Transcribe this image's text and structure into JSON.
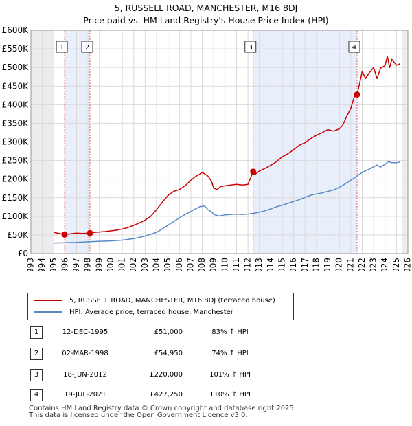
{
  "title": "5, RUSSELL ROAD, MANCHESTER, M16 8DJ",
  "subtitle": "Price paid vs. HM Land Registry's House Price Index (HPI)",
  "colors": {
    "property": "#cc0000",
    "hpi": "#5a8ac6",
    "band": "#e8eefa"
  },
  "chart_data": {
    "type": "line",
    "title": "Price paid vs. HM Land Registry's House Price Index (HPI)",
    "xlabel": "",
    "ylabel": "",
    "xlim": [
      1993,
      2026
    ],
    "ylim": [
      0,
      600000
    ],
    "x_ticks": [
      "1993",
      "1994",
      "1995",
      "1996",
      "1997",
      "1998",
      "1999",
      "2000",
      "2001",
      "2002",
      "2003",
      "2004",
      "2005",
      "2006",
      "2007",
      "2008",
      "2009",
      "2010",
      "2011",
      "2012",
      "2013",
      "2014",
      "2015",
      "2016",
      "2017",
      "2018",
      "2019",
      "2020",
      "2021",
      "2022",
      "2023",
      "2024",
      "2025",
      "2026"
    ],
    "y_ticks": [
      {
        "value": 0,
        "label": "£0"
      },
      {
        "value": 50000,
        "label": "£50K"
      },
      {
        "value": 100000,
        "label": "£100K"
      },
      {
        "value": 150000,
        "label": "£150K"
      },
      {
        "value": 200000,
        "label": "£200K"
      },
      {
        "value": 250000,
        "label": "£250K"
      },
      {
        "value": 300000,
        "label": "£300K"
      },
      {
        "value": 350000,
        "label": "£350K"
      },
      {
        "value": 400000,
        "label": "£400K"
      },
      {
        "value": 450000,
        "label": "£450K"
      },
      {
        "value": 500000,
        "label": "£500K"
      },
      {
        "value": 550000,
        "label": "£550K"
      },
      {
        "value": 600000,
        "label": "£600K"
      }
    ],
    "shaded_regions": [
      [
        1993,
        1995.0
      ],
      [
        2025.5,
        2026
      ]
    ],
    "series": [
      {
        "name": "5, RUSSELL ROAD, MANCHESTER, M16 8DJ (terraced house)",
        "x": [
          1995.0,
          1995.95,
          1996.5,
          1997.0,
          1997.5,
          1998.17,
          1998.6,
          1999.0,
          1999.5,
          2000.0,
          2000.5,
          2001.0,
          2001.5,
          2002.0,
          2002.5,
          2003.0,
          2003.5,
          2004.0,
          2004.5,
          2005.0,
          2005.5,
          2006.0,
          2006.5,
          2007.0,
          2007.4,
          2007.7,
          2008.0,
          2008.5,
          2008.8,
          2009.0,
          2009.3,
          2009.6,
          2010.0,
          2010.5,
          2011.0,
          2011.5,
          2012.0,
          2012.46,
          2012.6,
          2013.0,
          2013.5,
          2014.0,
          2014.5,
          2015.0,
          2015.5,
          2016.0,
          2016.5,
          2017.0,
          2017.5,
          2018.0,
          2018.5,
          2019.0,
          2019.5,
          2020.0,
          2020.3,
          2020.6,
          2021.0,
          2021.3,
          2021.55,
          2021.8,
          2022.0,
          2022.3,
          2022.6,
          2023.0,
          2023.3,
          2023.6,
          2024.0,
          2024.2,
          2024.4,
          2024.6,
          2025.0,
          2025.3
        ],
        "y": [
          57000,
          51000,
          53000,
          55000,
          54000,
          54950,
          57000,
          58000,
          59000,
          61000,
          63000,
          66000,
          70000,
          76000,
          82000,
          90000,
          100000,
          118000,
          138000,
          156000,
          167000,
          172000,
          182000,
          197000,
          207000,
          212000,
          218000,
          208000,
          195000,
          176000,
          172000,
          180000,
          182000,
          184000,
          186000,
          184000,
          186000,
          220000,
          212000,
          222000,
          229000,
          237000,
          247000,
          260000,
          268000,
          279000,
          291000,
          298000,
          309000,
          318000,
          325000,
          333000,
          329000,
          335000,
          345000,
          366000,
          390000,
          420000,
          427250,
          460000,
          490000,
          470000,
          485000,
          500000,
          470000,
          498000,
          505000,
          530000,
          500000,
          522000,
          506000,
          510000
        ]
      },
      {
        "name": "HPI: Average price, terraced house, Manchester",
        "x": [
          1995.0,
          1996.0,
          1997.0,
          1998.0,
          1999.0,
          2000.0,
          2001.0,
          2002.0,
          2003.0,
          2004.0,
          2004.5,
          2005.0,
          2005.5,
          2006.0,
          2006.5,
          2007.0,
          2007.4,
          2007.8,
          2008.2,
          2008.5,
          2008.8,
          2009.1,
          2009.5,
          2010.0,
          2010.5,
          2011.0,
          2011.5,
          2012.0,
          2012.5,
          2013.0,
          2013.5,
          2014.0,
          2014.5,
          2015.0,
          2015.5,
          2016.0,
          2016.5,
          2017.0,
          2017.5,
          2018.0,
          2018.5,
          2019.0,
          2019.5,
          2020.0,
          2020.5,
          2021.0,
          2021.5,
          2022.0,
          2022.5,
          2023.0,
          2023.3,
          2023.6,
          2024.0,
          2024.3,
          2024.6,
          2025.0,
          2025.3
        ],
        "y": [
          28000,
          29000,
          30000,
          31500,
          33000,
          34000,
          36000,
          40000,
          47000,
          57000,
          66000,
          76000,
          86000,
          96000,
          105000,
          113000,
          120000,
          126000,
          128000,
          118000,
          112000,
          104000,
          101000,
          104000,
          105000,
          106000,
          105000,
          106000,
          108000,
          111000,
          115000,
          120000,
          126000,
          130000,
          135000,
          140000,
          145000,
          151000,
          157000,
          160000,
          163000,
          167000,
          171000,
          178000,
          187000,
          197000,
          207000,
          218000,
          225000,
          233000,
          238000,
          232000,
          240000,
          247000,
          244000,
          244000,
          246000
        ]
      }
    ],
    "sales": [
      {
        "num": "1",
        "x": 1995.95,
        "y": 51000
      },
      {
        "num": "2",
        "x": 1998.17,
        "y": 54950
      },
      {
        "num": "3",
        "x": 2012.46,
        "y": 220000
      },
      {
        "num": "4",
        "x": 2021.55,
        "y": 427250
      }
    ]
  },
  "legend": {
    "property_label": "5, RUSSELL ROAD, MANCHESTER, M16 8DJ (terraced house)",
    "hpi_label": "HPI: Average price, terraced house, Manchester"
  },
  "transactions": [
    {
      "num": "1",
      "date": "12-DEC-1995",
      "price": "£51,000",
      "hpi": "83% ↑ HPI"
    },
    {
      "num": "2",
      "date": "02-MAR-1998",
      "price": "£54,950",
      "hpi": "74% ↑ HPI"
    },
    {
      "num": "3",
      "date": "18-JUN-2012",
      "price": "£220,000",
      "hpi": "101% ↑ HPI"
    },
    {
      "num": "4",
      "date": "19-JUL-2021",
      "price": "£427,250",
      "hpi": "110% ↑ HPI"
    }
  ],
  "footer": {
    "line1": "Contains HM Land Registry data © Crown copyright and database right 2025.",
    "line2": "This data is licensed under the Open Government Licence v3.0."
  }
}
